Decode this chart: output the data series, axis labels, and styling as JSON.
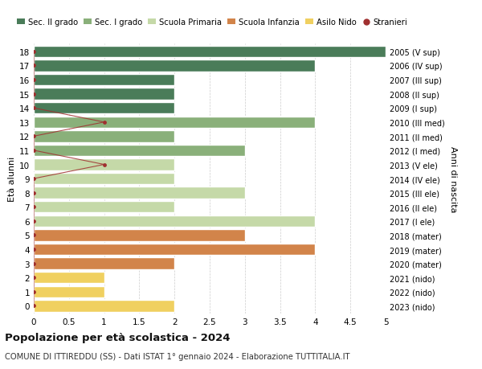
{
  "ages": [
    18,
    17,
    16,
    15,
    14,
    13,
    12,
    11,
    10,
    9,
    8,
    7,
    6,
    5,
    4,
    3,
    2,
    1,
    0
  ],
  "years": [
    "2005 (V sup)",
    "2006 (IV sup)",
    "2007 (III sup)",
    "2008 (II sup)",
    "2009 (I sup)",
    "2010 (III med)",
    "2011 (II med)",
    "2012 (I med)",
    "2013 (V ele)",
    "2014 (IV ele)",
    "2015 (III ele)",
    "2016 (II ele)",
    "2017 (I ele)",
    "2018 (mater)",
    "2019 (mater)",
    "2020 (mater)",
    "2021 (nido)",
    "2022 (nido)",
    "2023 (nido)"
  ],
  "values": [
    5,
    4,
    2,
    2,
    2,
    4,
    2,
    3,
    2,
    2,
    3,
    2,
    4,
    3,
    4,
    2,
    1,
    1,
    2
  ],
  "colors": [
    "#4a7c59",
    "#4a7c59",
    "#4a7c59",
    "#4a7c59",
    "#4a7c59",
    "#8ab07a",
    "#8ab07a",
    "#8ab07a",
    "#c5d9a8",
    "#c5d9a8",
    "#c5d9a8",
    "#c5d9a8",
    "#c5d9a8",
    "#d2844a",
    "#d2844a",
    "#d2844a",
    "#f0d060",
    "#f0d060",
    "#f0d060"
  ],
  "stranieri_ages": [
    18,
    17,
    16,
    15,
    14,
    13,
    12,
    11,
    10,
    9,
    8,
    7,
    6,
    5,
    4,
    3,
    2,
    1,
    0
  ],
  "stranieri_values": [
    0,
    0,
    0,
    0,
    0,
    1,
    0,
    0,
    1,
    0,
    0,
    0,
    0,
    0,
    0,
    0,
    0,
    0,
    0
  ],
  "stranieri_color": "#a03030",
  "line_color": "#a03030",
  "legend_labels": [
    "Sec. II grado",
    "Sec. I grado",
    "Scuola Primaria",
    "Scuola Infanzia",
    "Asilo Nido",
    "Stranieri"
  ],
  "legend_colors": [
    "#4a7c59",
    "#8ab07a",
    "#c5d9a8",
    "#d2844a",
    "#f0d060",
    "#a03030"
  ],
  "title": "Popolazione per età scolastica - 2024",
  "subtitle": "COMUNE DI ITTIREDDU (SS) - Dati ISTAT 1° gennaio 2024 - Elaborazione TUTTITALIA.IT",
  "ylabel_left": "Età alunni",
  "ylabel_right": "Anni di nascita",
  "xlim": [
    0,
    5.0
  ],
  "xticks": [
    0,
    0.5,
    1.0,
    1.5,
    2.0,
    2.5,
    3.0,
    3.5,
    4.0,
    4.5,
    5.0
  ],
  "bar_height": 0.82,
  "bg_color": "#ffffff",
  "grid_color": "#cccccc",
  "bar_edge_color": "#ffffff"
}
